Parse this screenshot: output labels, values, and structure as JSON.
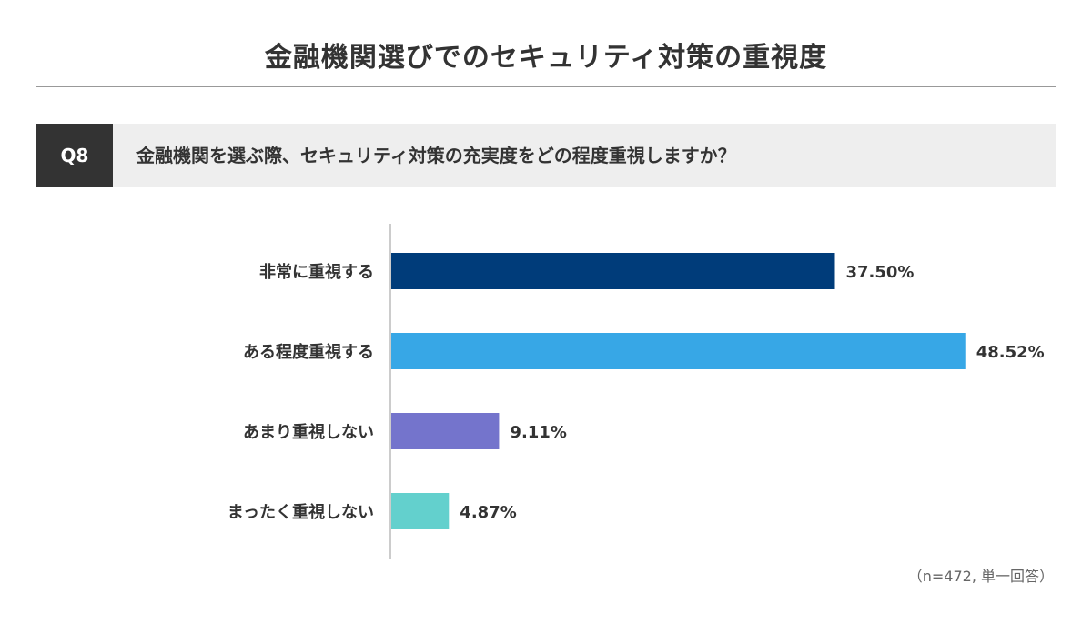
{
  "title": "金融機関選びでのセキュリティ対策の重視度",
  "question": {
    "label": "Q8",
    "text": "金融機関を選ぶ際、セキュリティ対策の充実度をどの程度重視しますか？"
  },
  "note": "（n=472, 単一回答）",
  "chart_data": {
    "type": "bar",
    "orientation": "horizontal",
    "categories": [
      "非常に重視する",
      "ある程度重視する",
      "あまり重視しない",
      "まったく重視しない"
    ],
    "values": [
      37.5,
      48.52,
      9.11,
      4.87
    ],
    "value_labels": [
      "37.50%",
      "48.52%",
      "9.11%",
      "4.87%"
    ],
    "colors": [
      "#003c7a",
      "#37a7e6",
      "#7474cc",
      "#63d0cd"
    ],
    "xlim": [
      0,
      50
    ],
    "grid": false,
    "legend": "none"
  }
}
